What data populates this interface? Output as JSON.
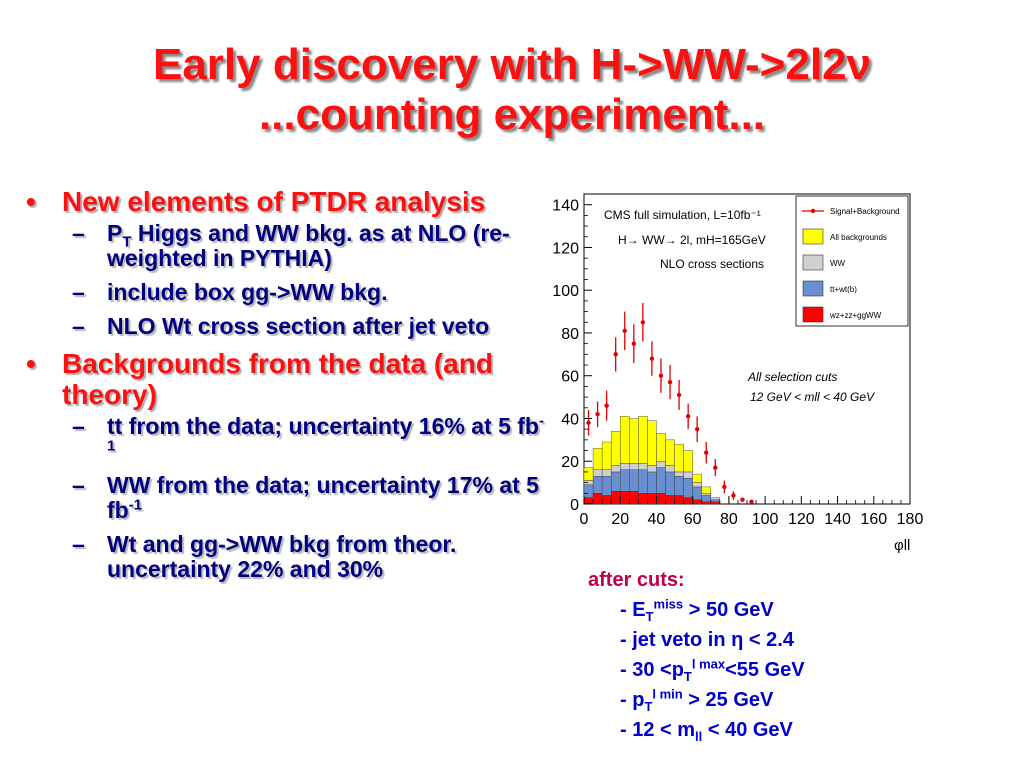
{
  "title": {
    "line1": "Early discovery with H->WW->2l2ν",
    "line2": "...counting experiment..."
  },
  "bullets": {
    "b1": "New elements of PTDR analysis",
    "b1_sub1_pre": "P",
    "b1_sub1_sub": "T",
    "b1_sub1_post": " Higgs and WW bkg. as at NLO (re-weighted in PYTHIA)",
    "b1_sub2": "include box gg->WW bkg.",
    "b1_sub3": "NLO Wt cross section after jet veto",
    "b2": "Backgrounds from the data (and theory)",
    "b2_sub1_pre": "tt from  the data; uncertainty 16% at 5 fb",
    "b2_sub1_sup": "-1",
    "b2_sub2_pre": "WW from the data; uncertainty 17% at 5 fb",
    "b2_sub2_sup": "-1",
    "b2_sub3": "Wt and gg->WW bkg from theor. uncertainty 22% and 30%",
    "bullet_char": "•",
    "dash_char": "–"
  },
  "cuts": {
    "head": "after cuts:",
    "c1_pre": "- E",
    "c1_sub": "T",
    "c1_sup": "miss",
    "c1_post": " > 50 GeV",
    "c2": "- jet veto in η < 2.4",
    "c3_pre": "- 30 <p",
    "c3_sub": "T",
    "c3_sup": "l max",
    "c3_post": "<55 GeV",
    "c4_pre": "- p",
    "c4_sub": "T",
    "c4_sup": "l min",
    "c4_post": " > 25 GeV",
    "c5_pre": "- 12 < m",
    "c5_sub": "ll",
    "c5_post": " < 40 GeV"
  },
  "chart_data": {
    "type": "bar",
    "x_edges": [
      0,
      5,
      10,
      15,
      20,
      25,
      30,
      35,
      40,
      45,
      50,
      55,
      60,
      65,
      70,
      75,
      80
    ],
    "xlim": [
      0,
      180
    ],
    "ylim": [
      0,
      145
    ],
    "xticks": [
      0,
      20,
      40,
      60,
      80,
      100,
      120,
      140,
      160,
      180
    ],
    "yticks": [
      0,
      20,
      40,
      60,
      80,
      100,
      120,
      140
    ],
    "xlabel": "φll",
    "text_lines": [
      "CMS full simulation, L=10fb⁻¹",
      "H→ WW→ 2l, mH=165GeV",
      "NLO cross sections"
    ],
    "selection_lines": [
      "All selection cuts",
      "12 GeV < mll < 40 GeV"
    ],
    "series": [
      {
        "name": "wz+zz+ggWW",
        "color": "#ff0000",
        "values": [
          3,
          5,
          4,
          6,
          6,
          6,
          5,
          5,
          5,
          4,
          4,
          3,
          2,
          1,
          1,
          0
        ]
      },
      {
        "name": "tt+wt(b)",
        "color": "#6a8fd0",
        "values": [
          6,
          8,
          9,
          9,
          10,
          10,
          11,
          10,
          12,
          11,
          9,
          9,
          6,
          3,
          1,
          0
        ]
      },
      {
        "name": "WW",
        "color": "#d0d0d0",
        "values": [
          2,
          3,
          3,
          3,
          3,
          3,
          3,
          3,
          3,
          3,
          2,
          3,
          2,
          1,
          1,
          0
        ]
      },
      {
        "name": "All backgrounds",
        "color": "#ffff00",
        "values": [
          6,
          10,
          13,
          16,
          22,
          21,
          22,
          21,
          13,
          12,
          13,
          10,
          4,
          3,
          0,
          0
        ]
      }
    ],
    "points": {
      "name": "Signal+Background",
      "color": "#e00000",
      "x": [
        2.5,
        7.5,
        12.5,
        17.5,
        22.5,
        27.5,
        32.5,
        37.5,
        42.5,
        47.5,
        52.5,
        57.5,
        62.5,
        67.5,
        72.5,
        77.5,
        82.5,
        87.5,
        92.5
      ],
      "y": [
        38,
        42,
        46,
        70,
        81,
        75,
        85,
        68,
        60,
        57,
        51,
        41,
        35,
        24,
        17,
        8,
        4,
        2,
        1
      ],
      "err": [
        6,
        6,
        7,
        8,
        9,
        9,
        9,
        8,
        8,
        8,
        7,
        6,
        6,
        5,
        4,
        3,
        2,
        1,
        1
      ]
    }
  }
}
